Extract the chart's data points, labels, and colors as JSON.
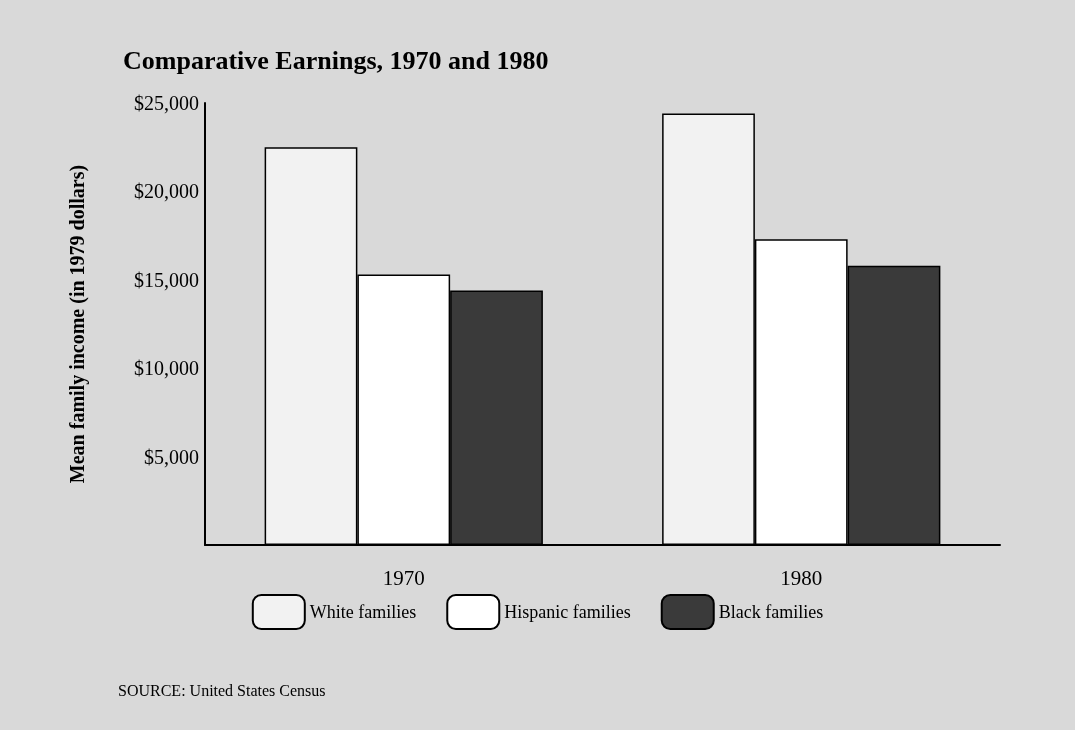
{
  "chart_data": {
    "type": "bar",
    "title": "Comparative Earnings, 1970 and 1980",
    "ylabel": "Mean family income (in 1979 dollars)",
    "categories": [
      "1970",
      "1980"
    ],
    "series": [
      {
        "name": "White families",
        "color": "#f2f2f2",
        "values": [
          22500,
          24400
        ]
      },
      {
        "name": "Hispanic families",
        "color": "#ffffff",
        "values": [
          15300,
          17300
        ]
      },
      {
        "name": "Black families",
        "color": "#3a3a3a",
        "values": [
          14400,
          15800
        ]
      }
    ],
    "ylim": [
      0,
      25000
    ],
    "yticks": [
      {
        "value": 5000,
        "label": "$5,000"
      },
      {
        "value": 10000,
        "label": "$10,000"
      },
      {
        "value": 15000,
        "label": "$15,000"
      },
      {
        "value": 20000,
        "label": "$20,000"
      },
      {
        "value": 25000,
        "label": "$25,000"
      }
    ],
    "grid": false,
    "legend": "bottom",
    "annotations": [
      "SOURCE: United States Census"
    ]
  }
}
